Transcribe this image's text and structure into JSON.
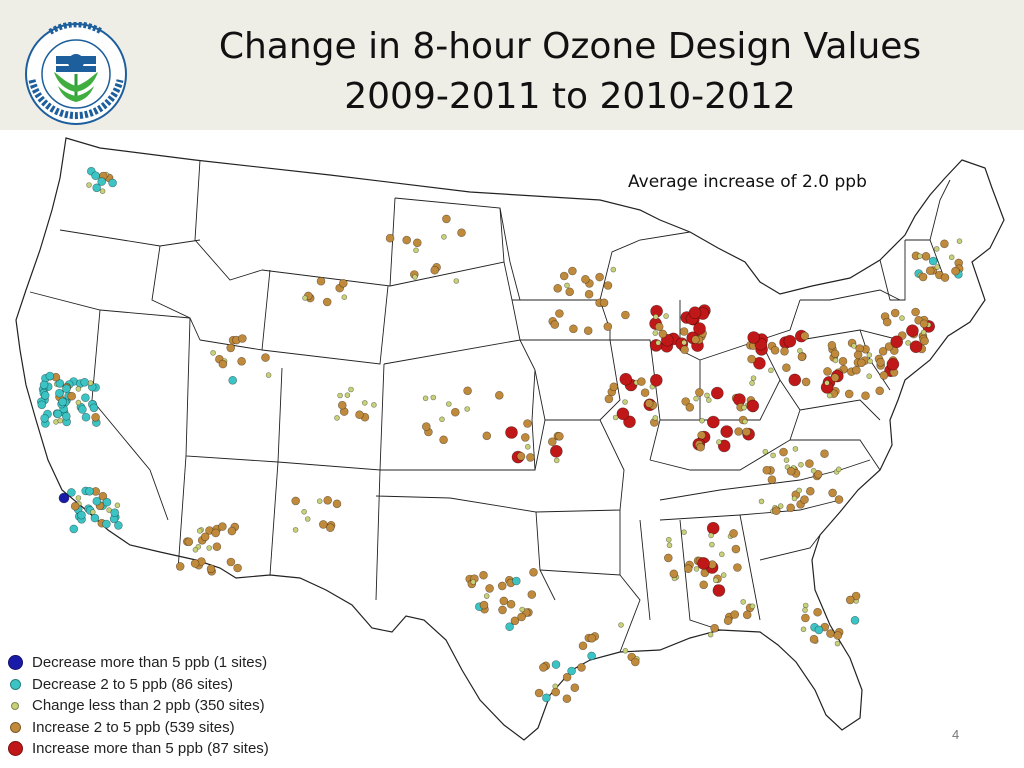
{
  "header": {
    "title_line1": "Change in 8-hour Ozone Design Values",
    "title_line2": "2009-2011 to 2010-2012",
    "logo_text": "UNITED STATES ENVIRONMENTAL PROTECTION AGENCY"
  },
  "map": {
    "annotation": "Average increase of 2.0 ppb"
  },
  "legend": {
    "items": [
      {
        "label": "Decrease more than 5 ppb (1 sites)",
        "color": "#1a1aa8",
        "size": "large"
      },
      {
        "label": "Decrease 2 to 5 ppb (86 sites)",
        "color": "#3cc4c4",
        "size": "medium"
      },
      {
        "label": "Change less than 2 ppb (350 sites)",
        "color": "#c8d078",
        "size": "small"
      },
      {
        "label": "Increase 2 to 5 ppb (539 sites)",
        "color": "#c08a3c",
        "size": "medium"
      },
      {
        "label": "Increase more than 5 ppb (87 sites)",
        "color": "#c01818",
        "size": "large"
      }
    ]
  },
  "footer": {
    "page_number": "4"
  }
}
